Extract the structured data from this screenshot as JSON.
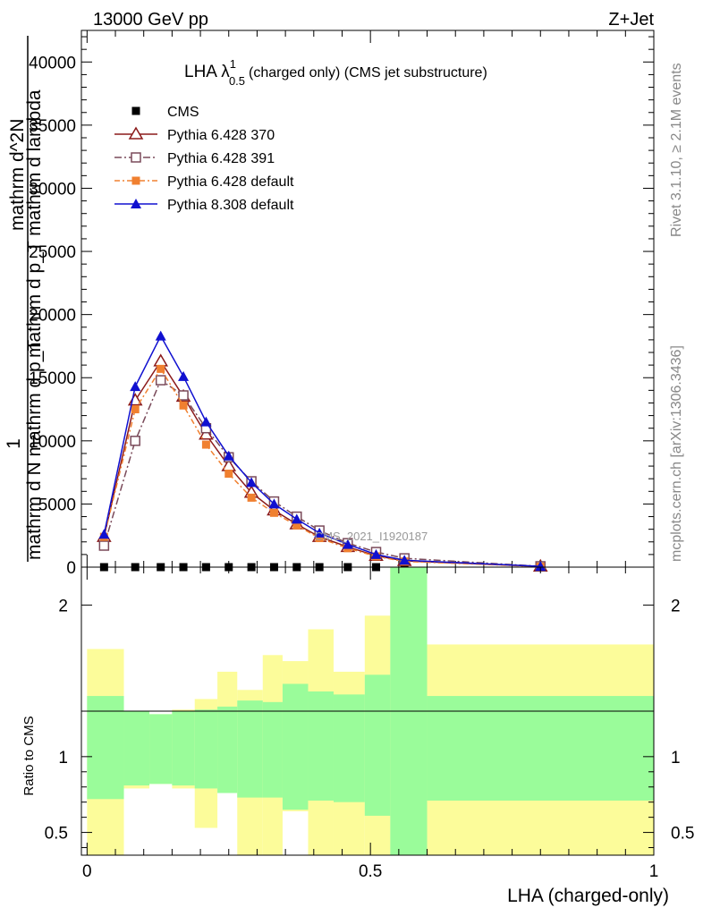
{
  "header": {
    "left": "13000 GeV pp",
    "right": "Z+Jet",
    "right_vertical_1": "Rivet 3.1.10, ≥ 2.1M events",
    "right_vertical_2": "mcplots.cern.ch [arXiv:1306.3436]",
    "watermark": "CMS_2021_I1920187"
  },
  "chart_data": [
    {
      "type": "line",
      "title_main": "LHA λ",
      "title_sup": "1",
      "title_sub": "0.5",
      "title_rest": "(charged only) (CMS jet substructure)",
      "ylabel_lines": [
        "mathrm d N",
        "mathrm d N mathrm d p",
        "mathrm d p",
        "mathrm d lambda"
      ],
      "ylabel": {
        "num": "1",
        "den": "mathrm d N mathrm d p_T",
        "num2": "mathrm d^2N",
        "den2": "mathrm d p_T mathrm d lambda"
      },
      "ylim": [
        0,
        42500
      ],
      "xlim": [
        -0.01,
        1.0
      ],
      "yticks": [
        "0",
        "5000",
        "10000",
        "15000",
        "20000",
        "25000",
        "30000",
        "35000",
        "40000"
      ],
      "ytick_values": [
        0,
        5000,
        10000,
        15000,
        20000,
        25000,
        30000,
        35000,
        40000
      ],
      "x": [
        0.03,
        0.085,
        0.13,
        0.17,
        0.21,
        0.25,
        0.29,
        0.33,
        0.37,
        0.41,
        0.46,
        0.51,
        0.56,
        0.8
      ],
      "series": [
        {
          "name": "CMS",
          "color": "#000000",
          "marker": "square",
          "values": [
            0,
            0,
            0,
            0,
            0,
            0,
            0,
            0,
            0,
            0,
            0,
            0,
            0,
            0
          ]
        },
        {
          "name": "Pythia 6.428 370",
          "color": "#8b1a1a",
          "marker": "triangle-open",
          "dash": "",
          "values": [
            2400,
            13200,
            16300,
            13500,
            10500,
            8000,
            5900,
            4500,
            3400,
            2400,
            1600,
            900,
            500,
            50
          ]
        },
        {
          "name": "Pythia 6.428 391",
          "color": "#7a4a5a",
          "marker": "square-open",
          "dash": "8,3,2,3",
          "values": [
            1700,
            10000,
            14800,
            13600,
            11000,
            8700,
            6800,
            5200,
            4000,
            2900,
            1900,
            1200,
            700,
            70
          ]
        },
        {
          "name": "Pythia 6.428 default",
          "color": "#f08030",
          "marker": "square",
          "dash": "6,3,2,3",
          "values": [
            2400,
            12500,
            15700,
            12800,
            9700,
            7400,
            5500,
            4300,
            3300,
            2300,
            1500,
            850,
            450,
            40
          ]
        },
        {
          "name": "Pythia 8.308 default",
          "color": "#1010d0",
          "marker": "triangle",
          "dash": "",
          "values": [
            2600,
            14300,
            18300,
            15100,
            11500,
            8800,
            6700,
            5000,
            3800,
            2700,
            1800,
            1000,
            550,
            60
          ]
        }
      ]
    },
    {
      "type": "area",
      "ylabel": "Ratio to CMS",
      "xlabel": "LHA (charged-only)",
      "ylim": [
        0.35,
        2.25
      ],
      "xlim": [
        -0.01,
        1.0
      ],
      "yticks": [
        "0.5",
        "1",
        "2"
      ],
      "ytick_values": [
        0.5,
        1,
        2
      ],
      "xticks": [
        "0",
        "0.5",
        "1"
      ],
      "xtick_values": [
        0,
        0.5,
        1
      ],
      "reference_line": 1,
      "bin_edges": [
        0.0,
        0.065,
        0.11,
        0.15,
        0.19,
        0.23,
        0.265,
        0.31,
        0.345,
        0.39,
        0.435,
        0.49,
        0.535,
        0.6,
        1.0
      ],
      "band_1sigma": {
        "color": "#9afc9a",
        "upper": [
          1.4,
          1.3,
          1.28,
          1.3,
          1.31,
          1.33,
          1.37,
          1.36,
          1.48,
          1.43,
          1.41,
          1.54,
          2.26,
          1.4
        ],
        "lower": [
          0.72,
          0.81,
          0.82,
          0.81,
          0.79,
          0.76,
          0.73,
          0.73,
          0.65,
          0.71,
          0.7,
          0.61,
          0.35,
          0.71
        ]
      },
      "band_2sigma": {
        "color": "#fcfc9a",
        "upper": [
          1.71,
          1.3,
          1.28,
          1.31,
          1.38,
          1.56,
          1.44,
          1.67,
          1.63,
          1.84,
          1.56,
          1.93,
          2.26,
          1.74
        ],
        "lower": [
          0.35,
          0.79,
          0.82,
          0.79,
          0.53,
          0.84,
          0.35,
          0.35,
          0.64,
          0.35,
          0.35,
          0.35,
          0.35,
          0.35
        ]
      }
    }
  ]
}
